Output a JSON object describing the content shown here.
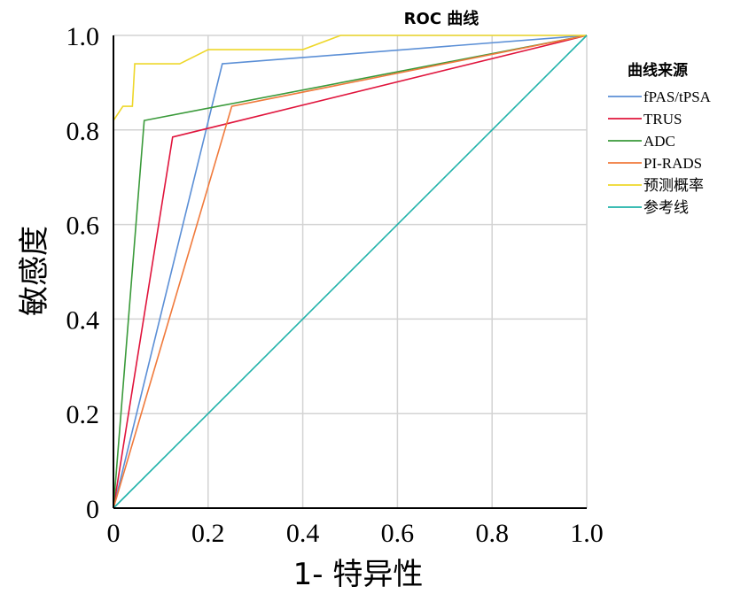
{
  "chart_data": {
    "type": "line",
    "title": "ROC 曲线",
    "xlabel": "1- 特异性",
    "ylabel": "敏感度",
    "xlim": [
      0,
      1
    ],
    "ylim": [
      0,
      1
    ],
    "x_ticks": [
      "0",
      "0.2",
      "0.4",
      "0.6",
      "0.8",
      "1.0"
    ],
    "y_ticks": [
      "0",
      "0.2",
      "0.4",
      "0.6",
      "0.8",
      "1.0"
    ],
    "grid": true,
    "legend": {
      "title": "曲线来源",
      "placement": "right"
    },
    "series": [
      {
        "name": "fPAS/tPSA",
        "color": "#5b8fd6",
        "points": [
          [
            0,
            0
          ],
          [
            0.23,
            0.94
          ],
          [
            1,
            1
          ]
        ]
      },
      {
        "name": "TRUS",
        "color": "#e0143c",
        "points": [
          [
            0,
            0
          ],
          [
            0.125,
            0.785
          ],
          [
            1,
            1
          ]
        ]
      },
      {
        "name": "ADC",
        "color": "#3a9a3a",
        "points": [
          [
            0,
            0
          ],
          [
            0.065,
            0.82
          ],
          [
            1,
            1
          ]
        ]
      },
      {
        "name": "PI-RADS",
        "color": "#f07a3c",
        "points": [
          [
            0,
            0
          ],
          [
            0.25,
            0.85
          ],
          [
            1,
            1
          ]
        ]
      },
      {
        "name": "预测概率",
        "color": "#eed72a",
        "points": [
          [
            0,
            0
          ],
          [
            0,
            0.82
          ],
          [
            0.02,
            0.85
          ],
          [
            0.04,
            0.85
          ],
          [
            0.045,
            0.94
          ],
          [
            0.14,
            0.94
          ],
          [
            0.2,
            0.97
          ],
          [
            0.4,
            0.97
          ],
          [
            0.48,
            1
          ],
          [
            1,
            1
          ]
        ]
      },
      {
        "name": "参考线",
        "color": "#20b2aa",
        "points": [
          [
            0,
            0
          ],
          [
            1,
            1
          ]
        ]
      }
    ]
  }
}
